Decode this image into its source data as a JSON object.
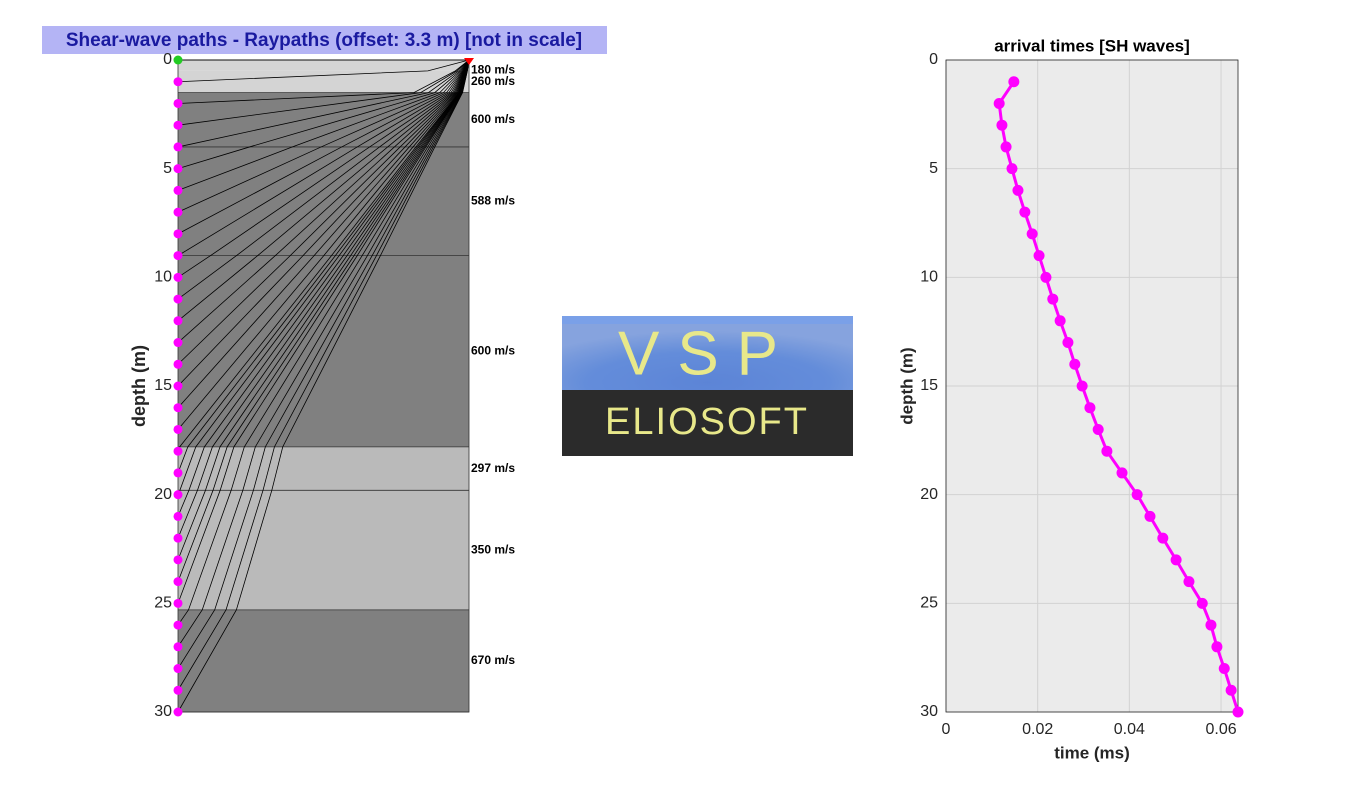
{
  "logo": {
    "top": "VSP",
    "bottom": "ELIOSOFT"
  },
  "chart_data": [
    {
      "type": "raypath",
      "title": "Shear-wave paths -  Raypaths (offset: 3.3 m) [not in scale]",
      "y_label": "depth (m)",
      "offset": 3.3,
      "ylim": [
        0,
        30
      ],
      "yticks": [
        0,
        5,
        10,
        15,
        20,
        25,
        30
      ],
      "layer_boundaries": [
        0,
        0.5,
        1.5,
        4,
        9,
        17.8,
        19.8,
        25.3,
        30
      ],
      "velocities": [
        180,
        260,
        600,
        588,
        600,
        297,
        350,
        670
      ],
      "value_labels": [
        "180 m/s",
        "260 m/s",
        "600 m/s",
        "588 m/s",
        "600 m/s",
        "297 m/s",
        "350 m/s",
        "670 m/s"
      ],
      "layer_colors": [
        "#d4d4d4",
        "#d4d4d4",
        "#808080",
        "#808080",
        "#808080",
        "#bababa",
        "#bababa",
        "#808080"
      ],
      "receivers": [
        0,
        1,
        2,
        3,
        4,
        5,
        6,
        7,
        8,
        9,
        10,
        11,
        12,
        13,
        14,
        15,
        16,
        17,
        18,
        19,
        20,
        21,
        22,
        23,
        24,
        25,
        26,
        27,
        28,
        29,
        30
      ],
      "receiver_color": "#ff00ff",
      "reference_color": "#22cc22",
      "source_color": "#ff0000"
    },
    {
      "type": "line",
      "title": "arrival times [SH waves]",
      "x_label": "time (ms)",
      "y_label": "depth (m)",
      "depths": [
        1,
        2,
        3,
        4,
        5,
        6,
        7,
        8,
        9,
        10,
        11,
        12,
        13,
        14,
        15,
        16,
        17,
        18,
        19,
        20,
        21,
        22,
        23,
        24,
        25,
        26,
        27,
        28,
        29,
        30
      ],
      "values": [
        0.0148,
        0.0116,
        0.0122,
        0.0131,
        0.0144,
        0.0157,
        0.0172,
        0.0188,
        0.0203,
        0.0218,
        0.0233,
        0.0249,
        0.0266,
        0.0281,
        0.0297,
        0.0314,
        0.0332,
        0.0351,
        0.0384,
        0.0417,
        0.0445,
        0.0473,
        0.0502,
        0.053,
        0.0559,
        0.0578,
        0.0591,
        0.0607,
        0.0622,
        0.0637
      ],
      "color": "#ff00ff",
      "xlim": [
        0,
        0.0637
      ],
      "xticks": [
        0,
        0.02,
        0.04,
        0.06
      ],
      "ylim": [
        0,
        30
      ],
      "yticks": [
        0,
        5,
        10,
        15,
        20,
        25,
        30
      ],
      "grid": true,
      "background": "#ebebeb"
    }
  ]
}
